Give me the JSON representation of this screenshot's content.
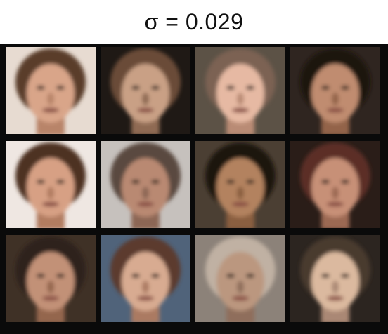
{
  "title": "σ = 0.029",
  "grid": {
    "rows": 3,
    "cols": 4,
    "tiles": [
      {
        "background": "#e7dbd1",
        "skin": "#d9a589",
        "hair": "#5a3d2c",
        "shade": "#b88469"
      },
      {
        "background": "#1f1915",
        "skin": "#c9a085",
        "hair": "#6b4c37",
        "shade": "#8f6a52"
      },
      {
        "background": "#5c5246",
        "skin": "#e6b9a3",
        "hair": "#7c6252",
        "shade": "#b98b74"
      },
      {
        "background": "#2f2520",
        "skin": "#c08c70",
        "hair": "#1f1410",
        "shade": "#936449"
      },
      {
        "background": "#efe7e2",
        "skin": "#d7a084",
        "hair": "#4d3023",
        "shade": "#b17b61"
      },
      {
        "background": "#c6c1bd",
        "skin": "#b98972",
        "hair": "#5a4a40",
        "shade": "#8c6654"
      },
      {
        "background": "#4b3f33",
        "skin": "#b3825e",
        "hair": "#1c1511",
        "shade": "#8a5e41"
      },
      {
        "background": "#2a1d18",
        "skin": "#c79077",
        "hair": "#5c2f25",
        "shade": "#9c6953"
      },
      {
        "background": "#3f3126",
        "skin": "#c29177",
        "hair": "#2f221b",
        "shade": "#94664e"
      },
      {
        "background": "#50637a",
        "skin": "#d8ab91",
        "hair": "#5b3a2d",
        "shade": "#ab7a62"
      },
      {
        "background": "#8c8279",
        "skin": "#bb977f",
        "hair": "#c0b1a3",
        "shade": "#8f6e5c"
      },
      {
        "background": "#2c2520",
        "skin": "#dbb99f",
        "hair": "#4a3a2f",
        "shade": "#aa8874"
      }
    ]
  }
}
